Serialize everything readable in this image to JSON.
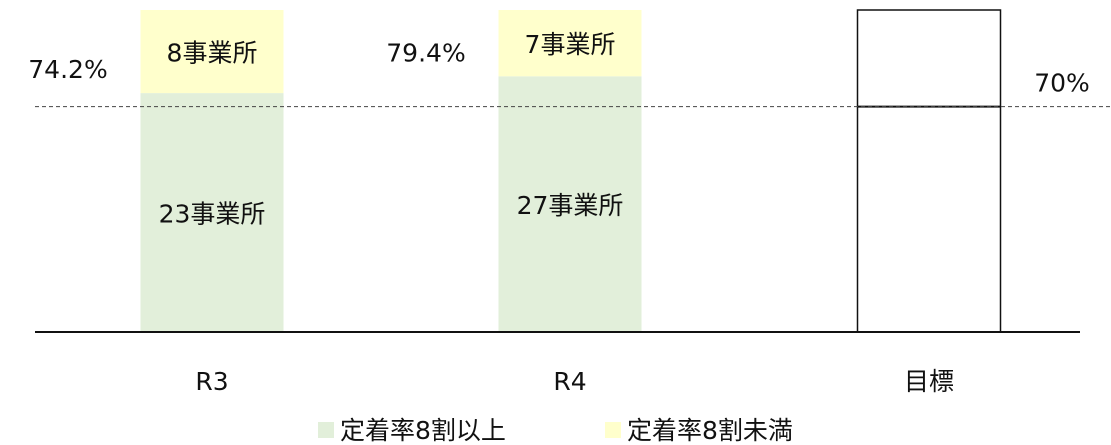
{
  "chart_data": {
    "type": "bar",
    "stacked": "percent",
    "categories": [
      "R3",
      "R4",
      "目標"
    ],
    "series": [
      {
        "name": "定着率8割以上",
        "color": "#e2efda",
        "values": [
          23,
          27,
          null
        ],
        "value_labels": [
          "23事業所",
          "27事業所",
          null
        ]
      },
      {
        "name": "定着率8割未満",
        "color": "#ffffcc",
        "values": [
          8,
          7,
          null
        ],
        "value_labels": [
          "8事業所",
          "7事業所",
          null
        ]
      }
    ],
    "rates": [
      {
        "value": 74.2,
        "label": "74.2%"
      },
      {
        "value": 79.4,
        "label": "79.4%"
      }
    ],
    "target": {
      "value": 70,
      "label": "70%"
    },
    "ylim": [
      0,
      100
    ],
    "legend": "bottom"
  }
}
